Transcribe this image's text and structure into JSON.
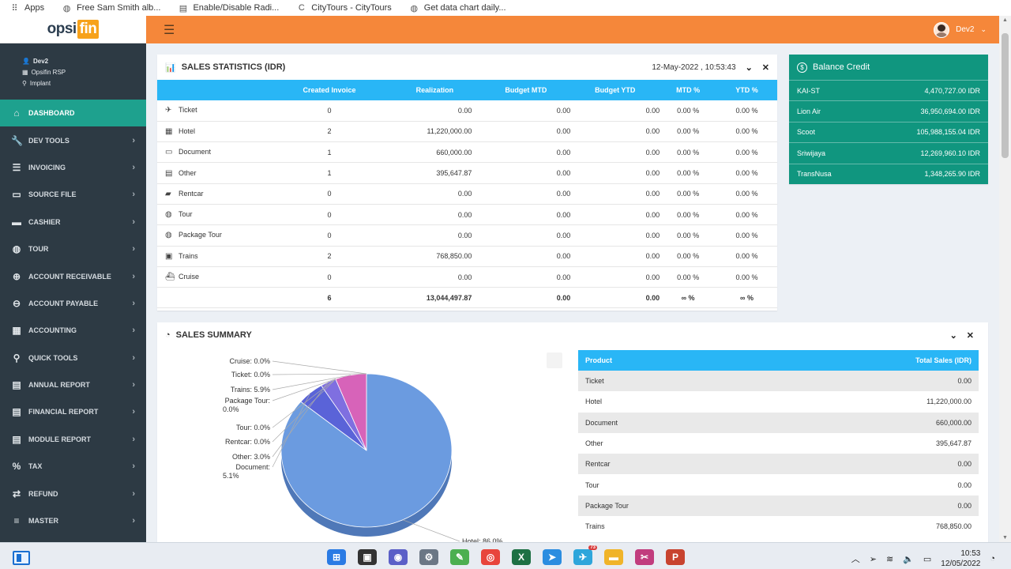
{
  "bookmarks": [
    {
      "icon": "apps-grid-icon",
      "label": "Apps"
    },
    {
      "icon": "globe-icon",
      "label": "Free Sam Smith alb..."
    },
    {
      "icon": "document-icon",
      "label": "Enable/Disable Radi..."
    },
    {
      "icon": "citytours-icon",
      "label": "CityTours - CityTours"
    },
    {
      "icon": "globe-icon",
      "label": "Get data chart daily..."
    }
  ],
  "logo": {
    "part1": "opsi",
    "part2": "fin"
  },
  "user": {
    "name": "Dev2"
  },
  "profile": {
    "name": "Dev2",
    "company": "Opsifin RSP",
    "location": "Implant"
  },
  "sidebar": {
    "items": [
      {
        "label": "DASHBOARD",
        "icon": "home-icon",
        "active": true
      },
      {
        "label": "DEV TOOLS",
        "icon": "wrench-icon"
      },
      {
        "label": "INVOICING",
        "icon": "list-icon"
      },
      {
        "label": "SOURCE FILE",
        "icon": "folder-icon"
      },
      {
        "label": "CASHIER",
        "icon": "cash-icon"
      },
      {
        "label": "TOUR",
        "icon": "globe-icon"
      },
      {
        "label": "ACCOUNT RECEIVABLE",
        "icon": "plus-circle-icon"
      },
      {
        "label": "ACCOUNT PAYABLE",
        "icon": "minus-circle-icon"
      },
      {
        "label": "ACCOUNTING",
        "icon": "calculator-icon"
      },
      {
        "label": "QUICK TOOLS",
        "icon": "search-icon"
      },
      {
        "label": "ANNUAL REPORT",
        "icon": "file-icon"
      },
      {
        "label": "FINANCIAL REPORT",
        "icon": "file-icon"
      },
      {
        "label": "MODULE REPORT",
        "icon": "file-icon"
      },
      {
        "label": "TAX",
        "icon": "percent-icon"
      },
      {
        "label": "REFUND",
        "icon": "exchange-icon"
      },
      {
        "label": "MASTER",
        "icon": "database-icon"
      }
    ]
  },
  "sales_stats": {
    "title": "SALES STATISTICS (IDR)",
    "datetime": "12-May-2022 , 10:53:43",
    "columns": [
      "Created Invoice",
      "Realization",
      "Budget MTD",
      "Budget YTD",
      "MTD %",
      "YTD %"
    ],
    "rows": [
      {
        "name": "Ticket",
        "icon": "plane-icon",
        "invoice": "0",
        "realization": "0.00",
        "mtd": "0.00",
        "ytd": "0.00",
        "mtd_pct": "0.00 %",
        "ytd_pct": "0.00 %"
      },
      {
        "name": "Hotel",
        "icon": "hotel-icon",
        "invoice": "2",
        "realization": "11,220,000.00",
        "mtd": "0.00",
        "ytd": "0.00",
        "mtd_pct": "0.00 %",
        "ytd_pct": "0.00 %"
      },
      {
        "name": "Document",
        "icon": "folder-icon",
        "invoice": "1",
        "realization": "660,000.00",
        "mtd": "0.00",
        "ytd": "0.00",
        "mtd_pct": "0.00 %",
        "ytd_pct": "0.00 %"
      },
      {
        "name": "Other",
        "icon": "other-icon",
        "invoice": "1",
        "realization": "395,647.87",
        "mtd": "0.00",
        "ytd": "0.00",
        "mtd_pct": "0.00 %",
        "ytd_pct": "0.00 %"
      },
      {
        "name": "Rentcar",
        "icon": "car-icon",
        "invoice": "0",
        "realization": "0.00",
        "mtd": "0.00",
        "ytd": "0.00",
        "mtd_pct": "0.00 %",
        "ytd_pct": "0.00 %"
      },
      {
        "name": "Tour",
        "icon": "globe-icon",
        "invoice": "0",
        "realization": "0.00",
        "mtd": "0.00",
        "ytd": "0.00",
        "mtd_pct": "0.00 %",
        "ytd_pct": "0.00 %"
      },
      {
        "name": "Package Tour",
        "icon": "globe-icon",
        "invoice": "0",
        "realization": "0.00",
        "mtd": "0.00",
        "ytd": "0.00",
        "mtd_pct": "0.00 %",
        "ytd_pct": "0.00 %"
      },
      {
        "name": "Trains",
        "icon": "train-icon",
        "invoice": "2",
        "realization": "768,850.00",
        "mtd": "0.00",
        "ytd": "0.00",
        "mtd_pct": "0.00 %",
        "ytd_pct": "0.00 %"
      },
      {
        "name": "Cruise",
        "icon": "ship-icon",
        "invoice": "0",
        "realization": "0.00",
        "mtd": "0.00",
        "ytd": "0.00",
        "mtd_pct": "0.00 %",
        "ytd_pct": "0.00 %"
      }
    ],
    "total": {
      "invoice": "6",
      "realization": "13,044,497.87",
      "mtd": "0.00",
      "ytd": "0.00",
      "mtd_pct": "∞ %",
      "ytd_pct": "∞ %"
    }
  },
  "balance": {
    "title": "Balance Credit",
    "rows": [
      {
        "name": "KAI-ST",
        "value": "4,470,727.00 IDR"
      },
      {
        "name": "Lion Air",
        "value": "36,950,694.00 IDR"
      },
      {
        "name": "Scoot",
        "value": "105,988,155.04 IDR"
      },
      {
        "name": "Sriwijaya",
        "value": "12,269,960.10 IDR"
      },
      {
        "name": "TransNusa",
        "value": "1,348,265.90 IDR"
      }
    ]
  },
  "summary": {
    "title": "SALES SUMMARY",
    "col_product": "Product",
    "col_total": "Total Sales (IDR)",
    "rows": [
      {
        "name": "Ticket",
        "value": "0.00"
      },
      {
        "name": "Hotel",
        "value": "11,220,000.00"
      },
      {
        "name": "Document",
        "value": "660,000.00"
      },
      {
        "name": "Other",
        "value": "395,647.87"
      },
      {
        "name": "Rentcar",
        "value": "0.00"
      },
      {
        "name": "Tour",
        "value": "0.00"
      },
      {
        "name": "Package Tour",
        "value": "0.00"
      },
      {
        "name": "Trains",
        "value": "768,850.00"
      }
    ]
  },
  "chart_data": {
    "type": "pie",
    "categories": [
      "Hotel",
      "Document",
      "Other",
      "Rentcar",
      "Tour",
      "Package Tour",
      "Trains",
      "Ticket",
      "Cruise"
    ],
    "values": [
      86.0,
      5.1,
      3.0,
      0.0,
      0.0,
      0.0,
      5.9,
      0.0,
      0.0
    ],
    "labels": [
      "Hotel: 86.0%",
      "Document: 5.1%",
      "Other: 3.0%",
      "Rentcar: 0.0%",
      "Tour: 0.0%",
      "Package Tour: 0.0%",
      "Trains: 5.9%",
      "Ticket: 0.0%",
      "Cruise: 0.0%"
    ],
    "colors": [
      "#6b9be0",
      "#5a63d8",
      "#7f6fe0",
      "#8a6ad8",
      "#9b66d6",
      "#a963d2",
      "#d763b9",
      "#c15ec6",
      "#b35dcc"
    ]
  },
  "taskbar": {
    "time": "10:53",
    "date": "12/05/2022",
    "telegram_badge": "73"
  }
}
